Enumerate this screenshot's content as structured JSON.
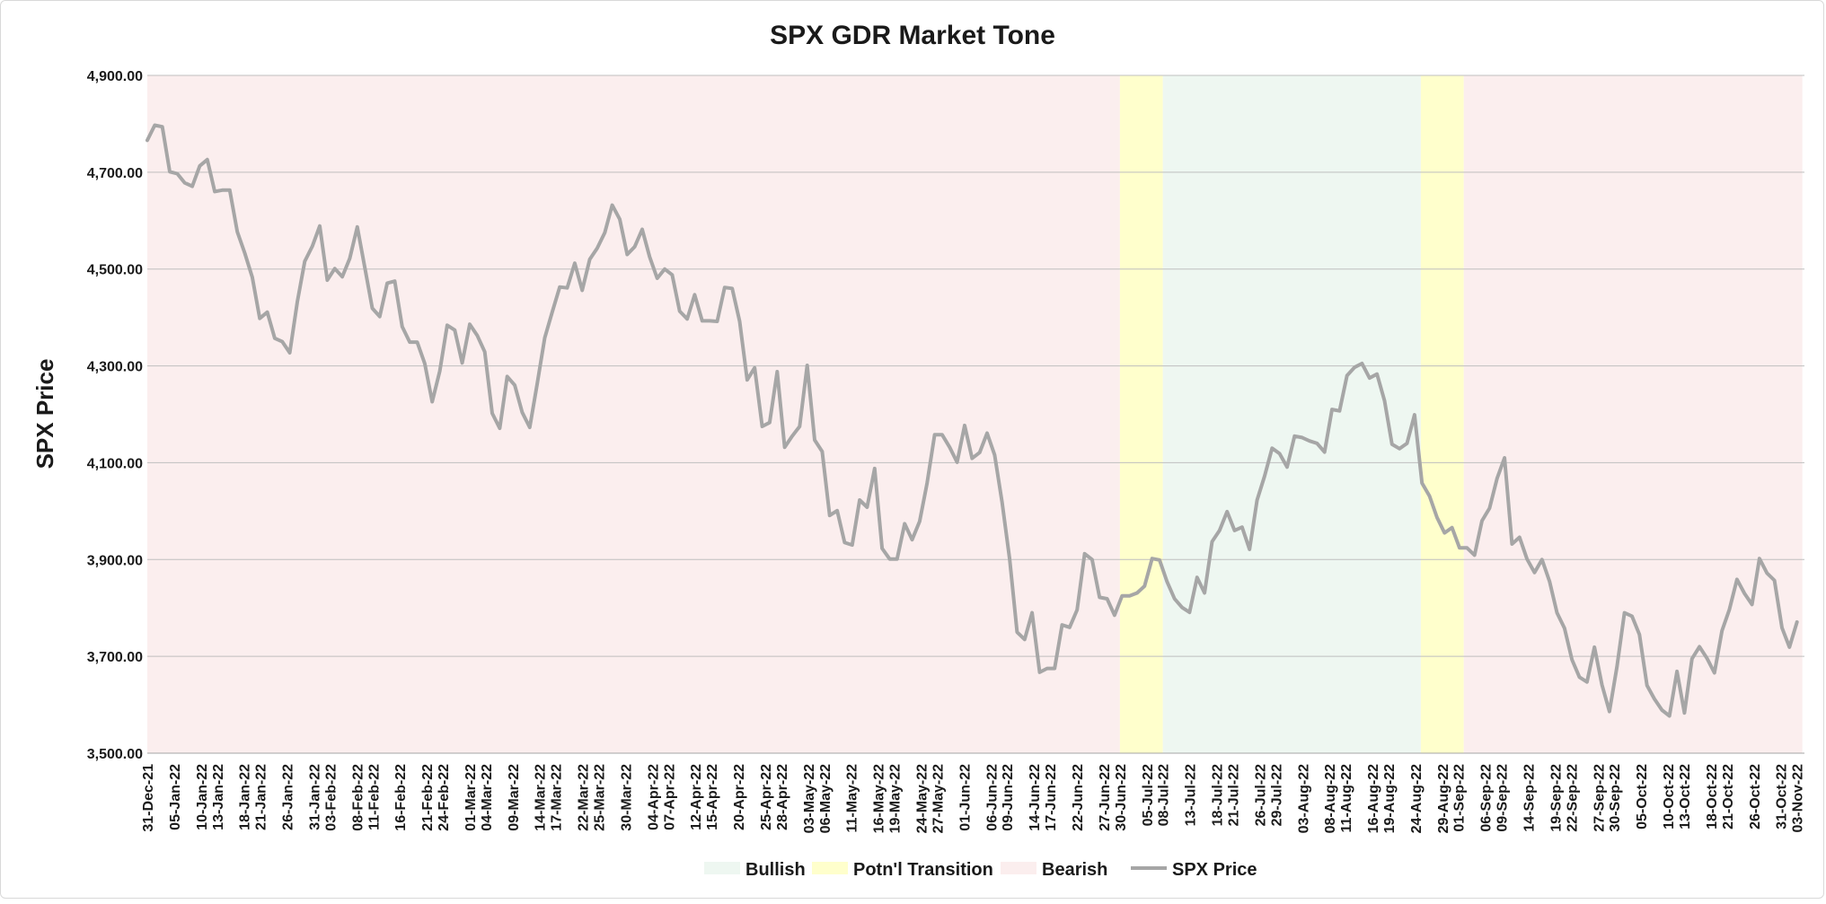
{
  "chart_data": {
    "type": "line",
    "title": "SPX GDR Market Tone",
    "ylabel": "SPX Price",
    "xlabel": "",
    "ylim": [
      3500,
      4900
    ],
    "y_ticks": [
      3500,
      3700,
      3900,
      4100,
      4300,
      4500,
      4700,
      4900
    ],
    "y_tick_labels": [
      "3,500.00",
      "3,700.00",
      "3,900.00",
      "4,100.00",
      "4,300.00",
      "4,500.00",
      "4,700.00",
      "4,900.00"
    ],
    "grid": "horizontal",
    "legend_position": "bottom",
    "colors": {
      "bullish": "#eef7f1",
      "transition": "#ffffcc",
      "bearish": "#fbeeee",
      "line": "#a6a6a6",
      "gridline": "#bfbfbf"
    },
    "legend": [
      {
        "key": "bullish",
        "label": "Bullish",
        "kind": "area"
      },
      {
        "key": "transition",
        "label": "Potn'l Transition",
        "kind": "area"
      },
      {
        "key": "bearish",
        "label": "Bearish",
        "kind": "area"
      },
      {
        "key": "line",
        "label": "SPX Price",
        "kind": "line"
      }
    ],
    "x_tick_labels": [
      "31-Dec-21",
      "05-Jan-22",
      "10-Jan-22",
      "13-Jan-22",
      "18-Jan-22",
      "21-Jan-22",
      "26-Jan-22",
      "31-Jan-22",
      "03-Feb-22",
      "08-Feb-22",
      "11-Feb-22",
      "16-Feb-22",
      "21-Feb-22",
      "24-Feb-22",
      "01-Mar-22",
      "04-Mar-22",
      "09-Mar-22",
      "14-Mar-22",
      "17-Mar-22",
      "22-Mar-22",
      "25-Mar-22",
      "30-Mar-22",
      "04-Apr-22",
      "07-Apr-22",
      "12-Apr-22",
      "15-Apr-22",
      "20-Apr-22",
      "25-Apr-22",
      "28-Apr-22",
      "03-May-22",
      "06-May-22",
      "11-May-22",
      "16-May-22",
      "19-May-22",
      "24-May-22",
      "27-May-22",
      "01-Jun-22",
      "06-Jun-22",
      "09-Jun-22",
      "14-Jun-22",
      "17-Jun-22",
      "22-Jun-22",
      "27-Jun-22",
      "30-Jun-22",
      "05-Jul-22",
      "08-Jul-22",
      "13-Jul-22",
      "18-Jul-22",
      "21-Jul-22",
      "26-Jul-22",
      "29-Jul-22",
      "03-Aug-22",
      "08-Aug-22",
      "11-Aug-22",
      "16-Aug-22",
      "19-Aug-22",
      "24-Aug-22",
      "29-Aug-22",
      "01-Sep-22",
      "06-Sep-22",
      "09-Sep-22",
      "14-Sep-22",
      "19-Sep-22",
      "22-Sep-22",
      "27-Sep-22",
      "30-Sep-22",
      "05-Oct-22",
      "10-Oct-22",
      "13-Oct-22",
      "18-Oct-22",
      "21-Oct-22",
      "26-Oct-22",
      "31-Oct-22",
      "03-Nov-22"
    ],
    "regimes": [
      {
        "type": "bearish",
        "from": "31-Dec-21",
        "to": "30-Jun-22"
      },
      {
        "type": "transition",
        "from": "30-Jun-22",
        "to": "08-Jul-22"
      },
      {
        "type": "bullish",
        "from": "08-Jul-22",
        "to": "25-Aug-22"
      },
      {
        "type": "transition",
        "from": "25-Aug-22",
        "to": "02-Sep-22"
      },
      {
        "type": "bearish",
        "from": "02-Sep-22",
        "to": "04-Nov-22"
      }
    ],
    "series": [
      {
        "name": "SPX Price",
        "values": [
          4766,
          4797,
          4794,
          4701,
          4697,
          4678,
          4671,
          4713,
          4726,
          4660,
          4663,
          4663,
          4577,
          4533,
          4483,
          4398,
          4411,
          4357,
          4350,
          4327,
          4432,
          4516,
          4547,
          4589,
          4477,
          4501,
          4484,
          4522,
          4587,
          4504,
          4419,
          4402,
          4471,
          4475,
          4381,
          4349,
          4349,
          4305,
          4226,
          4289,
          4384,
          4374,
          4306,
          4386,
          4363,
          4329,
          4202,
          4171,
          4278,
          4260,
          4204,
          4173,
          4263,
          4358,
          4411,
          4463,
          4461,
          4512,
          4456,
          4520,
          4543,
          4575,
          4632,
          4603,
          4530,
          4546,
          4582,
          4525,
          4481,
          4500,
          4488,
          4413,
          4397,
          4447,
          4393,
          4393,
          4392,
          4462,
          4460,
          4392,
          4271,
          4296,
          4175,
          4183,
          4288,
          4132,
          4155,
          4175,
          4301,
          4147,
          4123,
          3991,
          4001,
          3935,
          3930,
          4023,
          4008,
          4088,
          3923,
          3901,
          3901,
          3974,
          3941,
          3979,
          4058,
          4158,
          4158,
          4132,
          4101,
          4177,
          4109,
          4121,
          4161,
          4116,
          4018,
          3901,
          3750,
          3735,
          3790,
          3667,
          3675,
          3675,
          3765,
          3760,
          3796,
          3912,
          3900,
          3822,
          3819,
          3785,
          3825,
          3825,
          3831,
          3845,
          3902,
          3899,
          3854,
          3819,
          3801,
          3791,
          3863,
          3831,
          3937,
          3960,
          3999,
          3960,
          3967,
          3921,
          4023,
          4072,
          4130,
          4119,
          4091,
          4155,
          4152,
          4145,
          4140,
          4122,
          4210,
          4207,
          4280,
          4297,
          4305,
          4275,
          4283,
          4228,
          4138,
          4129,
          4140,
          4199,
          4058,
          4031,
          3987,
          3955,
          3966,
          3924,
          3924,
          3909,
          3980,
          4006,
          4067,
          4110,
          3932,
          3946,
          3901,
          3873,
          3900,
          3855,
          3790,
          3758,
          3693,
          3657,
          3647,
          3719,
          3641,
          3586,
          3679,
          3790,
          3783,
          3745,
          3640,
          3612,
          3589,
          3577,
          3669,
          3583,
          3695,
          3720,
          3696,
          3666,
          3753,
          3797,
          3859,
          3830,
          3807,
          3902,
          3872,
          3857,
          3759,
          3719,
          3771
        ]
      }
    ]
  }
}
